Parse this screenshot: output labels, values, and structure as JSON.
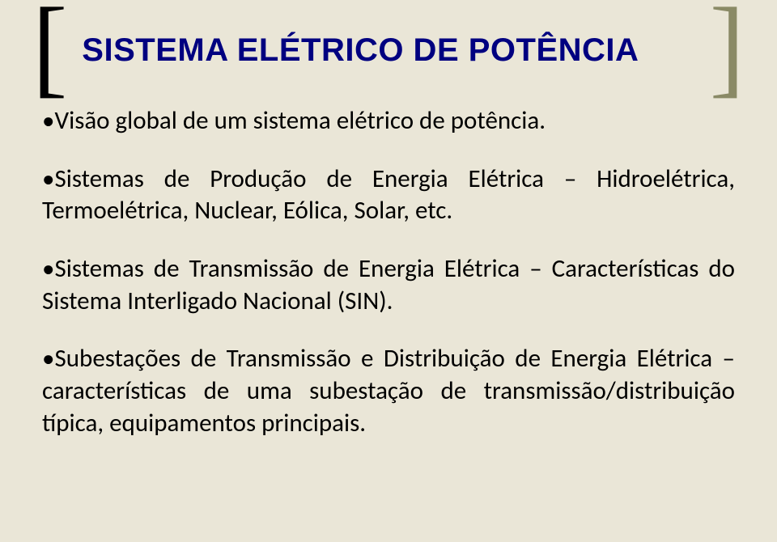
{
  "title": "SISTEMA ELÉTRICO DE POTÊNCIA",
  "bullets": [
    {
      "text": "Visão global de um sistema elétrico de potência.",
      "justify": false
    },
    {
      "text": "Sistemas de Produção de Energia Elétrica – Hidroelétrica, Termoelétrica, Nuclear, Eólica, Solar, etc.",
      "justify": true
    },
    {
      "text": "Sistemas de Transmissão de Energia Elétrica – Características do Sistema Interligado Nacional (SIN).",
      "justify": true
    },
    {
      "text": "Subestações de Transmissão e Distribuição de Energia Elétrica – características de uma subestação de transmissão/distribuição típica, equipamentos principais.",
      "justify": true
    }
  ],
  "brackets": {
    "left": "[",
    "right": "]"
  },
  "colors": {
    "background": "#eae6d7",
    "title": "#000080",
    "body": "#000000",
    "right_bracket": "#8a8a66"
  }
}
